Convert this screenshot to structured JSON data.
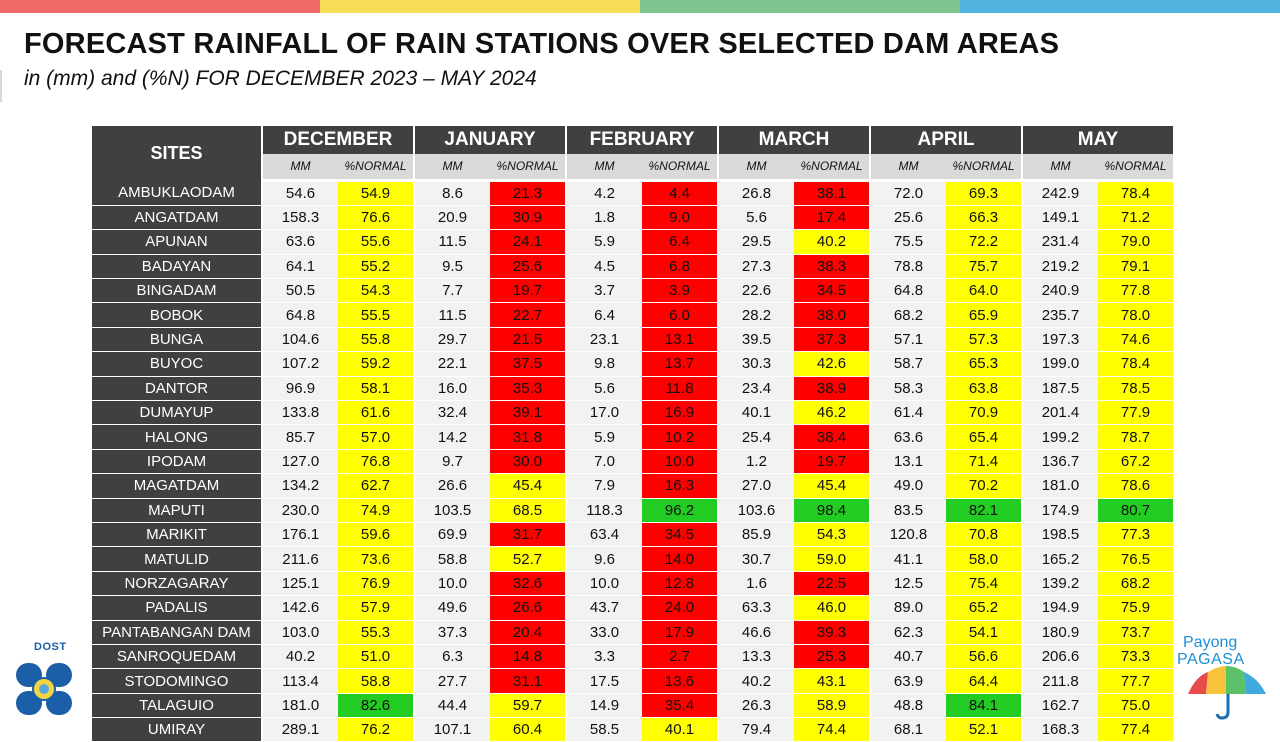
{
  "header": {
    "title": "FORECAST RAINFALL OF RAIN STATIONS OVER SELECTED DAM AREAS",
    "subtitle": "in (mm) and (%N) FOR DECEMBER 2023 – MAY 2024"
  },
  "top_bar_colors": [
    "#f06a6a",
    "#f5dd55",
    "#7ec48e",
    "#52b4e0"
  ],
  "legend_colors": {
    "r": "#ff0000",
    "y": "#ffff00",
    "g": "#22cc22"
  },
  "table": {
    "sites_label": "SITES",
    "months": [
      "DECEMBER",
      "JANUARY",
      "FEBRUARY",
      "MARCH",
      "APRIL",
      "MAY"
    ],
    "mm_label": "MM",
    "normal_label": "%NORMAL",
    "rows": [
      {
        "site": "AMBUKLAODAM",
        "vals": [
          [
            "54.6",
            "54.9",
            "y"
          ],
          [
            "8.6",
            "21.3",
            "r"
          ],
          [
            "4.2",
            "4.4",
            "r"
          ],
          [
            "26.8",
            "38.1",
            "r"
          ],
          [
            "72.0",
            "69.3",
            "y"
          ],
          [
            "242.9",
            "78.4",
            "y"
          ]
        ]
      },
      {
        "site": "ANGATDAM",
        "vals": [
          [
            "158.3",
            "76.6",
            "y"
          ],
          [
            "20.9",
            "30.9",
            "r"
          ],
          [
            "1.8",
            "9.0",
            "r"
          ],
          [
            "5.6",
            "17.4",
            "r"
          ],
          [
            "25.6",
            "66.3",
            "y"
          ],
          [
            "149.1",
            "71.2",
            "y"
          ]
        ]
      },
      {
        "site": "APUNAN",
        "vals": [
          [
            "63.6",
            "55.6",
            "y"
          ],
          [
            "11.5",
            "24.1",
            "r"
          ],
          [
            "5.9",
            "6.4",
            "r"
          ],
          [
            "29.5",
            "40.2",
            "y"
          ],
          [
            "75.5",
            "72.2",
            "y"
          ],
          [
            "231.4",
            "79.0",
            "y"
          ]
        ]
      },
      {
        "site": "BADAYAN",
        "vals": [
          [
            "64.1",
            "55.2",
            "y"
          ],
          [
            "9.5",
            "25.6",
            "r"
          ],
          [
            "4.5",
            "6.8",
            "r"
          ],
          [
            "27.3",
            "38.3",
            "r"
          ],
          [
            "78.8",
            "75.7",
            "y"
          ],
          [
            "219.2",
            "79.1",
            "y"
          ]
        ]
      },
      {
        "site": "BINGADAM",
        "vals": [
          [
            "50.5",
            "54.3",
            "y"
          ],
          [
            "7.7",
            "19.7",
            "r"
          ],
          [
            "3.7",
            "3.9",
            "r"
          ],
          [
            "22.6",
            "34.5",
            "r"
          ],
          [
            "64.8",
            "64.0",
            "y"
          ],
          [
            "240.9",
            "77.8",
            "y"
          ]
        ]
      },
      {
        "site": "BOBOK",
        "vals": [
          [
            "64.8",
            "55.5",
            "y"
          ],
          [
            "11.5",
            "22.7",
            "r"
          ],
          [
            "6.4",
            "6.0",
            "r"
          ],
          [
            "28.2",
            "38.0",
            "r"
          ],
          [
            "68.2",
            "65.9",
            "y"
          ],
          [
            "235.7",
            "78.0",
            "y"
          ]
        ]
      },
      {
        "site": "BUNGA",
        "vals": [
          [
            "104.6",
            "55.8",
            "y"
          ],
          [
            "29.7",
            "21.5",
            "r"
          ],
          [
            "23.1",
            "13.1",
            "r"
          ],
          [
            "39.5",
            "37.3",
            "r"
          ],
          [
            "57.1",
            "57.3",
            "y"
          ],
          [
            "197.3",
            "74.6",
            "y"
          ]
        ]
      },
      {
        "site": "BUYOC",
        "vals": [
          [
            "107.2",
            "59.2",
            "y"
          ],
          [
            "22.1",
            "37.5",
            "r"
          ],
          [
            "9.8",
            "13.7",
            "r"
          ],
          [
            "30.3",
            "42.6",
            "y"
          ],
          [
            "58.7",
            "65.3",
            "y"
          ],
          [
            "199.0",
            "78.4",
            "y"
          ]
        ]
      },
      {
        "site": "DANTOR",
        "vals": [
          [
            "96.9",
            "58.1",
            "y"
          ],
          [
            "16.0",
            "35.3",
            "r"
          ],
          [
            "5.6",
            "11.8",
            "r"
          ],
          [
            "23.4",
            "38.9",
            "r"
          ],
          [
            "58.3",
            "63.8",
            "y"
          ],
          [
            "187.5",
            "78.5",
            "y"
          ]
        ]
      },
      {
        "site": "DUMAYUP",
        "vals": [
          [
            "133.8",
            "61.6",
            "y"
          ],
          [
            "32.4",
            "39.1",
            "r"
          ],
          [
            "17.0",
            "16.9",
            "r"
          ],
          [
            "40.1",
            "46.2",
            "y"
          ],
          [
            "61.4",
            "70.9",
            "y"
          ],
          [
            "201.4",
            "77.9",
            "y"
          ]
        ]
      },
      {
        "site": "HALONG",
        "vals": [
          [
            "85.7",
            "57.0",
            "y"
          ],
          [
            "14.2",
            "31.8",
            "r"
          ],
          [
            "5.9",
            "10.2",
            "r"
          ],
          [
            "25.4",
            "38.4",
            "r"
          ],
          [
            "63.6",
            "65.4",
            "y"
          ],
          [
            "199.2",
            "78.7",
            "y"
          ]
        ]
      },
      {
        "site": "IPODAM",
        "vals": [
          [
            "127.0",
            "76.8",
            "y"
          ],
          [
            "9.7",
            "30.0",
            "r"
          ],
          [
            "7.0",
            "10.0",
            "r"
          ],
          [
            "1.2",
            "19.7",
            "r"
          ],
          [
            "13.1",
            "71.4",
            "y"
          ],
          [
            "136.7",
            "67.2",
            "y"
          ]
        ]
      },
      {
        "site": "MAGATDAM",
        "vals": [
          [
            "134.2",
            "62.7",
            "y"
          ],
          [
            "26.6",
            "45.4",
            "y"
          ],
          [
            "7.9",
            "16.3",
            "r"
          ],
          [
            "27.0",
            "45.4",
            "y"
          ],
          [
            "49.0",
            "70.2",
            "y"
          ],
          [
            "181.0",
            "78.6",
            "y"
          ]
        ]
      },
      {
        "site": "MAPUTI",
        "vals": [
          [
            "230.0",
            "74.9",
            "y"
          ],
          [
            "103.5",
            "68.5",
            "y"
          ],
          [
            "118.3",
            "96.2",
            "g"
          ],
          [
            "103.6",
            "98.4",
            "g"
          ],
          [
            "83.5",
            "82.1",
            "g"
          ],
          [
            "174.9",
            "80.7",
            "g"
          ]
        ]
      },
      {
        "site": "MARIKIT",
        "vals": [
          [
            "176.1",
            "59.6",
            "y"
          ],
          [
            "69.9",
            "31.7",
            "r"
          ],
          [
            "63.4",
            "34.5",
            "r"
          ],
          [
            "85.9",
            "54.3",
            "y"
          ],
          [
            "120.8",
            "70.8",
            "y"
          ],
          [
            "198.5",
            "77.3",
            "y"
          ]
        ]
      },
      {
        "site": "MATULID",
        "vals": [
          [
            "211.6",
            "73.6",
            "y"
          ],
          [
            "58.8",
            "52.7",
            "y"
          ],
          [
            "9.6",
            "14.0",
            "r"
          ],
          [
            "30.7",
            "59.0",
            "y"
          ],
          [
            "41.1",
            "58.0",
            "y"
          ],
          [
            "165.2",
            "76.5",
            "y"
          ]
        ]
      },
      {
        "site": "NORZAGARAY",
        "vals": [
          [
            "125.1",
            "76.9",
            "y"
          ],
          [
            "10.0",
            "32.6",
            "r"
          ],
          [
            "10.0",
            "12.8",
            "r"
          ],
          [
            "1.6",
            "22.5",
            "r"
          ],
          [
            "12.5",
            "75.4",
            "y"
          ],
          [
            "139.2",
            "68.2",
            "y"
          ]
        ]
      },
      {
        "site": "PADALIS",
        "vals": [
          [
            "142.6",
            "57.9",
            "y"
          ],
          [
            "49.6",
            "26.6",
            "r"
          ],
          [
            "43.7",
            "24.0",
            "r"
          ],
          [
            "63.3",
            "46.0",
            "y"
          ],
          [
            "89.0",
            "65.2",
            "y"
          ],
          [
            "194.9",
            "75.9",
            "y"
          ]
        ]
      },
      {
        "site": "PANTABANGAN DAM",
        "vals": [
          [
            "103.0",
            "55.3",
            "y"
          ],
          [
            "37.3",
            "20.4",
            "r"
          ],
          [
            "33.0",
            "17.9",
            "r"
          ],
          [
            "46.6",
            "39.3",
            "r"
          ],
          [
            "62.3",
            "54.1",
            "y"
          ],
          [
            "180.9",
            "73.7",
            "y"
          ]
        ]
      },
      {
        "site": "SANROQUEDAM",
        "vals": [
          [
            "40.2",
            "51.0",
            "y"
          ],
          [
            "6.3",
            "14.8",
            "r"
          ],
          [
            "3.3",
            "2.7",
            "r"
          ],
          [
            "13.3",
            "25.3",
            "r"
          ],
          [
            "40.7",
            "56.6",
            "y"
          ],
          [
            "206.6",
            "73.3",
            "y"
          ]
        ]
      },
      {
        "site": "STODOMINGO",
        "vals": [
          [
            "113.4",
            "58.8",
            "y"
          ],
          [
            "27.7",
            "31.1",
            "r"
          ],
          [
            "17.5",
            "13.6",
            "r"
          ],
          [
            "40.2",
            "43.1",
            "y"
          ],
          [
            "63.9",
            "64.4",
            "y"
          ],
          [
            "211.8",
            "77.7",
            "y"
          ]
        ]
      },
      {
        "site": "TALAGUIO",
        "vals": [
          [
            "181.0",
            "82.6",
            "g"
          ],
          [
            "44.4",
            "59.7",
            "y"
          ],
          [
            "14.9",
            "35.4",
            "r"
          ],
          [
            "26.3",
            "58.9",
            "y"
          ],
          [
            "48.8",
            "84.1",
            "g"
          ],
          [
            "162.7",
            "75.0",
            "y"
          ]
        ]
      },
      {
        "site": "UMIRAY",
        "vals": [
          [
            "289.1",
            "76.2",
            "y"
          ],
          [
            "107.1",
            "60.4",
            "y"
          ],
          [
            "58.5",
            "40.1",
            "y"
          ],
          [
            "79.4",
            "74.4",
            "y"
          ],
          [
            "68.1",
            "52.1",
            "y"
          ],
          [
            "168.3",
            "77.4",
            "y"
          ]
        ]
      }
    ]
  },
  "logos": {
    "dost_label": "DOST",
    "pagasa_line1": "Payong",
    "pagasa_line2": "PAGASA"
  }
}
